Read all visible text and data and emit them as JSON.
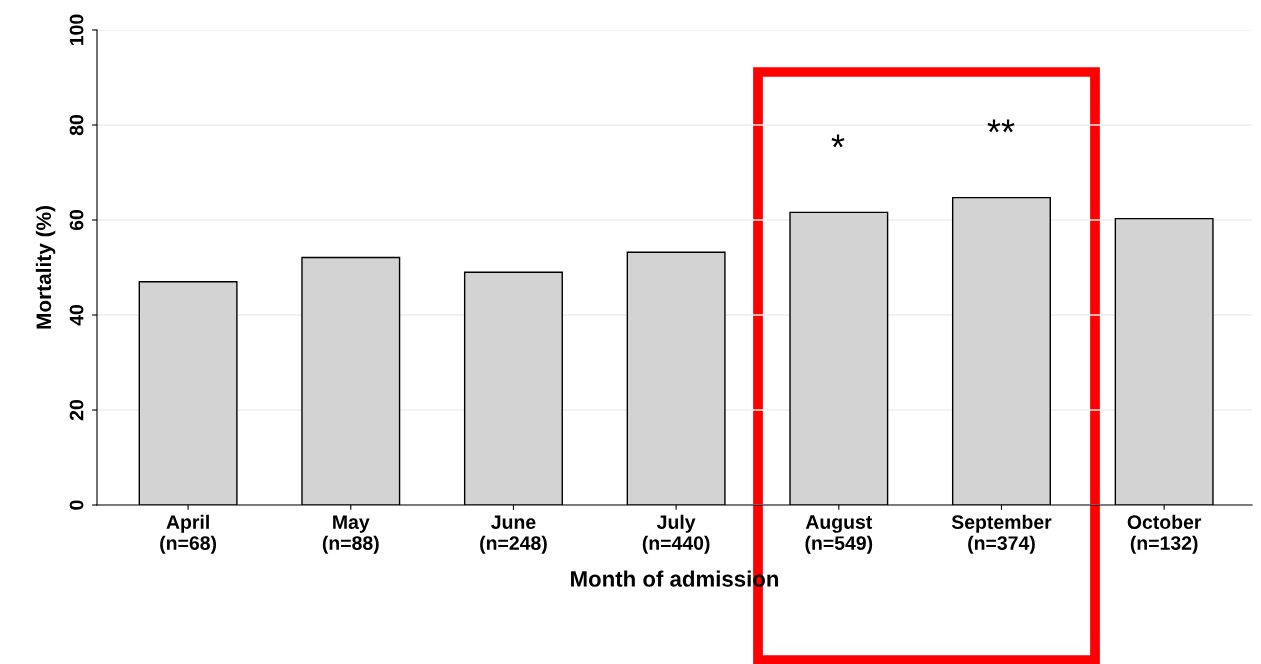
{
  "chart_data": {
    "type": "bar",
    "xlabel": "Month of admission",
    "ylabel": "Mortality (%)",
    "categories": [
      "April\n(n=68)",
      "May\n(n=88)",
      "June\n(n=248)",
      "July\n(n=440)",
      "August\n(n=549)",
      "September\n(n=374)",
      "October\n(n=132)"
    ],
    "values": [
      47.0,
      52.1,
      49.0,
      53.2,
      61.6,
      64.7,
      60.3
    ],
    "color": "#d3d3d3",
    "ylim": [
      0,
      100
    ],
    "yticks": [
      0,
      20,
      40,
      60,
      80,
      100
    ],
    "grid": "y",
    "annotations": [
      "*",
      "**"
    ]
  }
}
